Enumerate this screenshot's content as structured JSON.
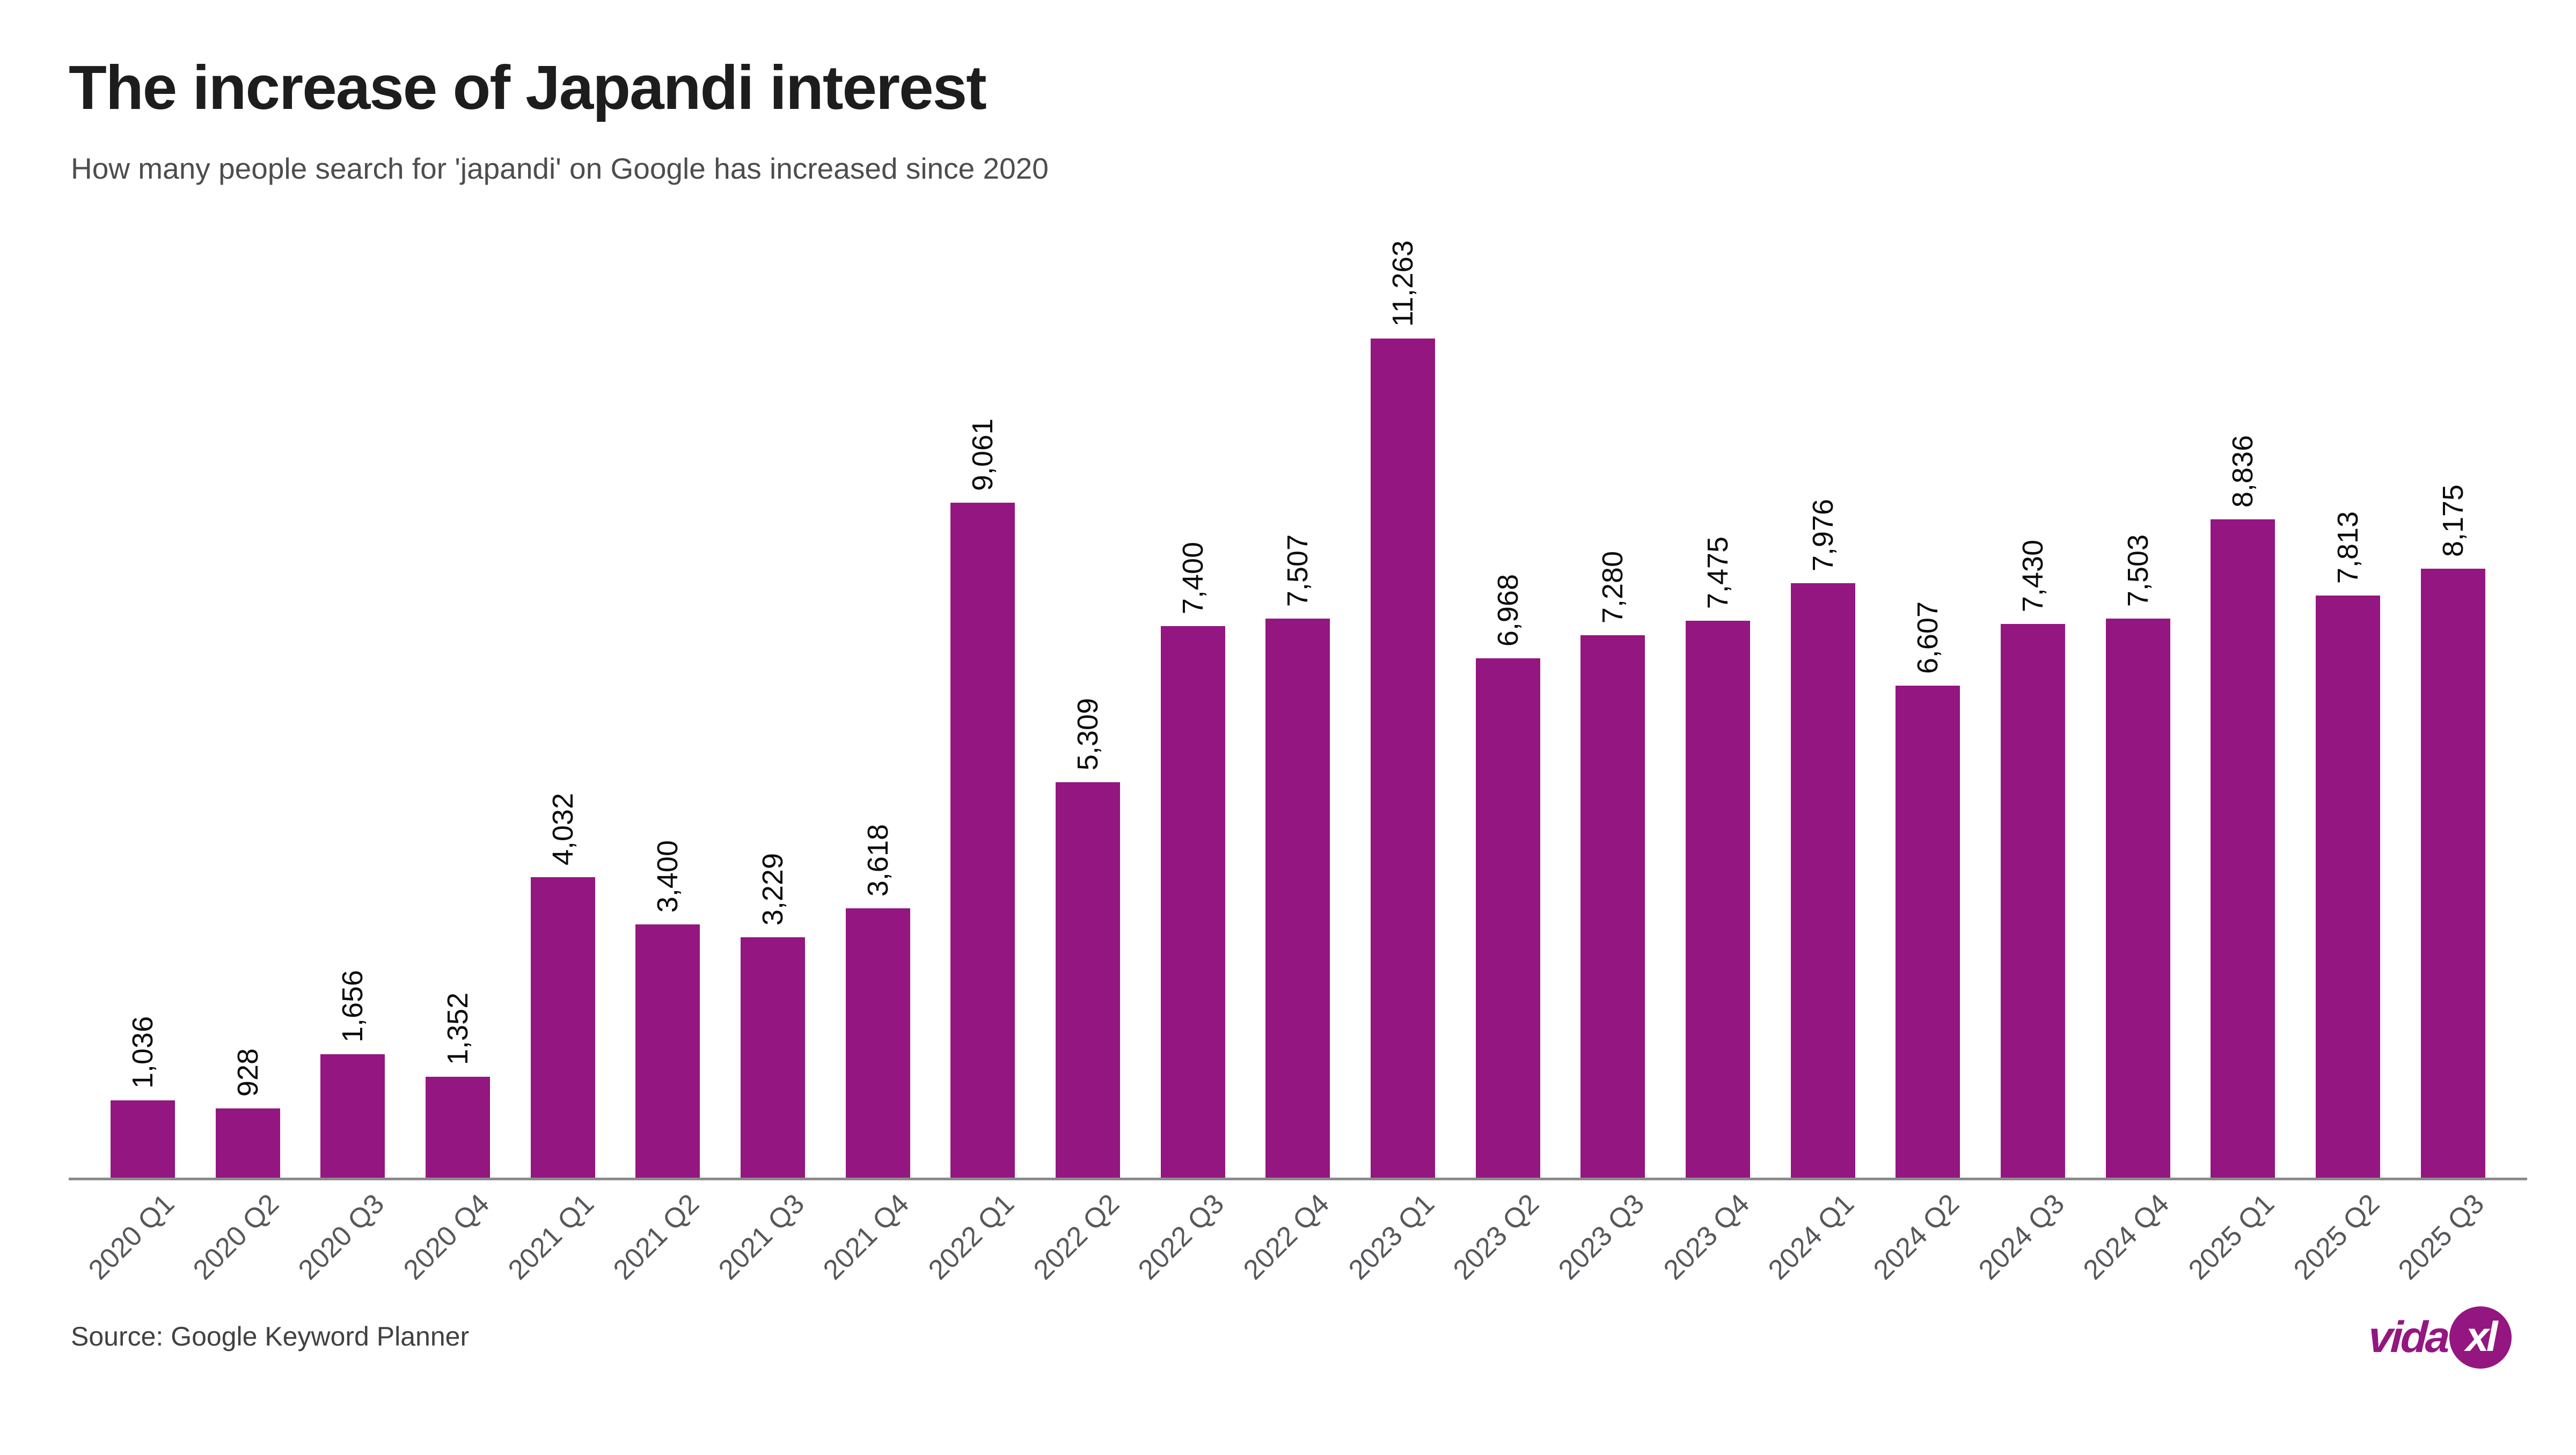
{
  "header": {
    "title": "The increase of Japandi interest",
    "subtitle": "How many people search for 'japandi' on Google has increased since 2020"
  },
  "chart_data": {
    "type": "bar",
    "title": "The increase of Japandi interest",
    "subtitle": "How many people search for 'japandi' on Google has increased since 2020",
    "categories": [
      "2020 Q1",
      "2020 Q2",
      "2020 Q3",
      "2020 Q4",
      "2021 Q1",
      "2021 Q2",
      "2021 Q3",
      "2021 Q4",
      "2022 Q1",
      "2022 Q2",
      "2022 Q3",
      "2022 Q4",
      "2023 Q1",
      "2023 Q2",
      "2023 Q3",
      "2023 Q4",
      "2024 Q1",
      "2024 Q2",
      "2024 Q3",
      "2024 Q4",
      "2025 Q1",
      "2025 Q2",
      "2025 Q3"
    ],
    "values": [
      1036,
      928,
      1656,
      1352,
      4032,
      3400,
      3229,
      3618,
      9061,
      5309,
      7400,
      7507,
      11263,
      6968,
      7280,
      7475,
      7976,
      6607,
      7430,
      7503,
      8836,
      7813,
      8175
    ],
    "value_labels": [
      "1,036",
      "928",
      "1,656",
      "1,352",
      "4,032",
      "3,400",
      "3,229",
      "3,618",
      "9,061",
      "5,309",
      "7,400",
      "7,507",
      "11,263",
      "6,968",
      "7,280",
      "7,475",
      "7,976",
      "6,607",
      "7,430",
      "7,503",
      "8,836",
      "7,813",
      "8,175"
    ],
    "xlabel": "",
    "ylabel": "",
    "ylim": [
      0,
      11263
    ],
    "grid": false,
    "legend": false,
    "bar_color": "#941680",
    "axis_line_color": "#8b8b8b",
    "tick_label_color": "#56575a",
    "value_label_color": "#0a0a0a",
    "value_label_rotation_deg": 90,
    "tick_label_rotation_deg": 45
  },
  "footer": {
    "source": "Source: Google Keyword Planner",
    "logo_text_vida": "vida",
    "logo_text_xl": "xl",
    "logo_color": "#941680"
  }
}
